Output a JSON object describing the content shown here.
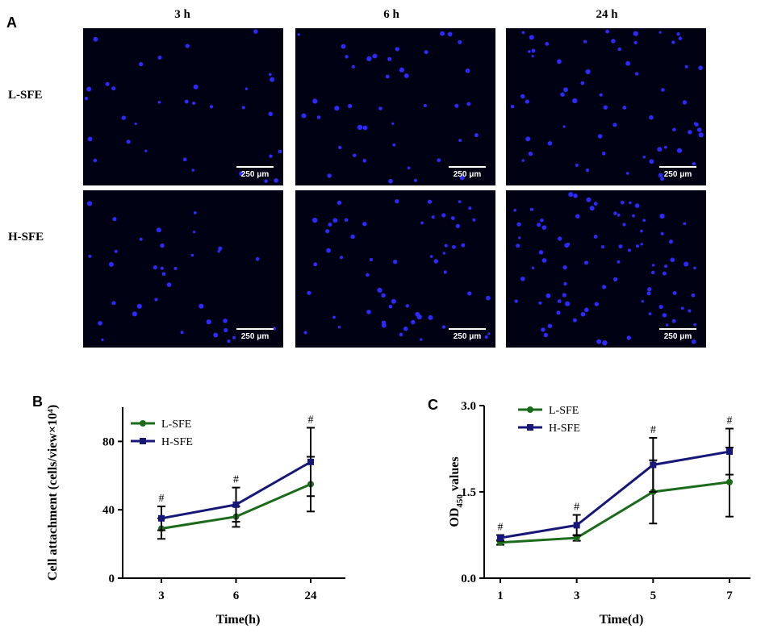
{
  "figure": {
    "panel_labels": {
      "a": "A",
      "b": "B",
      "c": "C"
    },
    "columns": [
      "3 h",
      "6 h",
      "24 h"
    ],
    "rows": [
      "L-SFE",
      "H-SFE"
    ],
    "scale_bar": "250 μm",
    "colors": {
      "nuclei": "#2b2bff",
      "background": "#010114",
      "l_sfe": "#1a6b1a",
      "h_sfe": "#17177a"
    }
  },
  "chart_data": [
    {
      "type": "line",
      "panel": "B",
      "xlabel": "Time(h)",
      "ylabel": "Cell attachment (cells/view×10⁴)",
      "categories": [
        "3",
        "6",
        "24"
      ],
      "ylim": [
        0,
        100
      ],
      "yticks": [
        0,
        40,
        80
      ],
      "series": [
        {
          "name": "L-SFE",
          "values": [
            29,
            36,
            55
          ],
          "error": [
            6,
            6,
            16
          ]
        },
        {
          "name": "H-SFE",
          "values": [
            35,
            43,
            68
          ],
          "error": [
            7,
            10,
            20
          ]
        }
      ],
      "annotations": [
        "#",
        "#",
        "#"
      ],
      "legend": "top-left"
    },
    {
      "type": "line",
      "panel": "C",
      "xlabel": "Time(d)",
      "ylabel_main": "OD",
      "ylabel_sub": "450",
      "ylabel_rest": " values",
      "categories": [
        "1",
        "3",
        "5",
        "7"
      ],
      "ylim": [
        0,
        3.0
      ],
      "yticks": [
        "0.0",
        "1.5",
        "3.0"
      ],
      "series": [
        {
          "name": "L-SFE",
          "values": [
            0.62,
            0.7,
            1.5,
            1.67
          ],
          "error": [
            0.04,
            0.05,
            0.55,
            0.6
          ]
        },
        {
          "name": "H-SFE",
          "values": [
            0.7,
            0.92,
            1.97,
            2.2
          ],
          "error": [
            0.05,
            0.18,
            0.47,
            0.4
          ]
        }
      ],
      "annotations": [
        "#",
        "#",
        "#",
        "#"
      ],
      "legend": "top-left"
    }
  ]
}
